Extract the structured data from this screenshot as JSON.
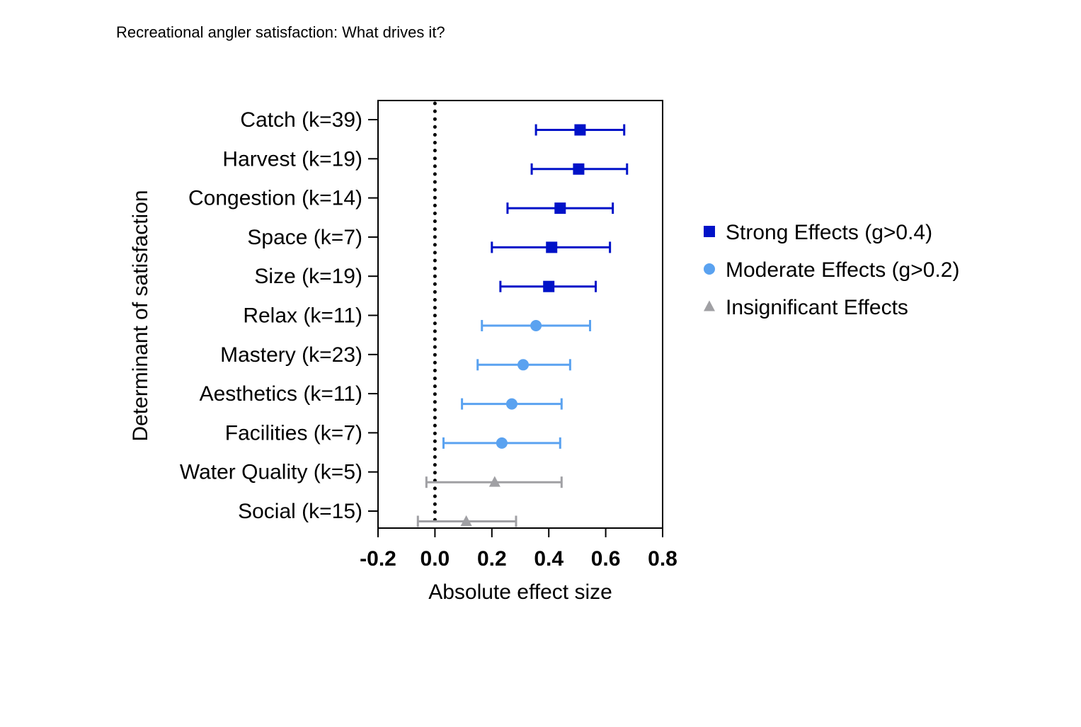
{
  "page": {
    "title": "Recreational angler satisfaction: What drives it?"
  },
  "chart_data": {
    "type": "scatter",
    "subtype": "forest-plot-with-error-bars",
    "xlabel": "Absolute effect size",
    "ylabel": "Determinant of satisfaction",
    "xlim": [
      -0.2,
      0.8
    ],
    "xticks": [
      "-0.2",
      "0.0",
      "0.2",
      "0.4",
      "0.6",
      "0.8"
    ],
    "reference_line": {
      "x": 0.0,
      "style": "dotted"
    },
    "categories": [
      "Catch (k=39)",
      "Harvest (k=19)",
      "Congestion (k=14)",
      "Space (k=7)",
      "Size (k=19)",
      "Relax (k=11)",
      "Mastery (k=23)",
      "Aesthetics (k=11)",
      "Facilities (k=7)",
      "Water Quality (k=5)",
      "Social (k=15)"
    ],
    "series": [
      {
        "name": "Strong Effects (g>0.4)",
        "marker": "square",
        "color": "#0012C8",
        "points": [
          {
            "category": "Catch (k=39)",
            "value": 0.51,
            "lower": 0.355,
            "upper": 0.665
          },
          {
            "category": "Harvest (k=19)",
            "value": 0.505,
            "lower": 0.34,
            "upper": 0.675
          },
          {
            "category": "Congestion (k=14)",
            "value": 0.44,
            "lower": 0.255,
            "upper": 0.625
          },
          {
            "category": "Space (k=7)",
            "value": 0.41,
            "lower": 0.2,
            "upper": 0.615
          },
          {
            "category": "Size (k=19)",
            "value": 0.4,
            "lower": 0.23,
            "upper": 0.565
          }
        ]
      },
      {
        "name": "Moderate Effects (g>0.2)",
        "marker": "circle",
        "color": "#5AA2F0",
        "points": [
          {
            "category": "Relax (k=11)",
            "value": 0.355,
            "lower": 0.165,
            "upper": 0.545
          },
          {
            "category": "Mastery (k=23)",
            "value": 0.31,
            "lower": 0.15,
            "upper": 0.475
          },
          {
            "category": "Aesthetics (k=11)",
            "value": 0.27,
            "lower": 0.095,
            "upper": 0.445
          },
          {
            "category": "Facilities (k=7)",
            "value": 0.235,
            "lower": 0.03,
            "upper": 0.44
          }
        ]
      },
      {
        "name": "Insignificant Effects",
        "marker": "triangle",
        "color": "#A0A0A4",
        "points": [
          {
            "category": "Water Quality (k=5)",
            "value": 0.21,
            "lower": -0.03,
            "upper": 0.445
          },
          {
            "category": "Social (k=15)",
            "value": 0.11,
            "lower": -0.06,
            "upper": 0.285
          }
        ]
      }
    ],
    "legend": {
      "placement": "right"
    }
  }
}
